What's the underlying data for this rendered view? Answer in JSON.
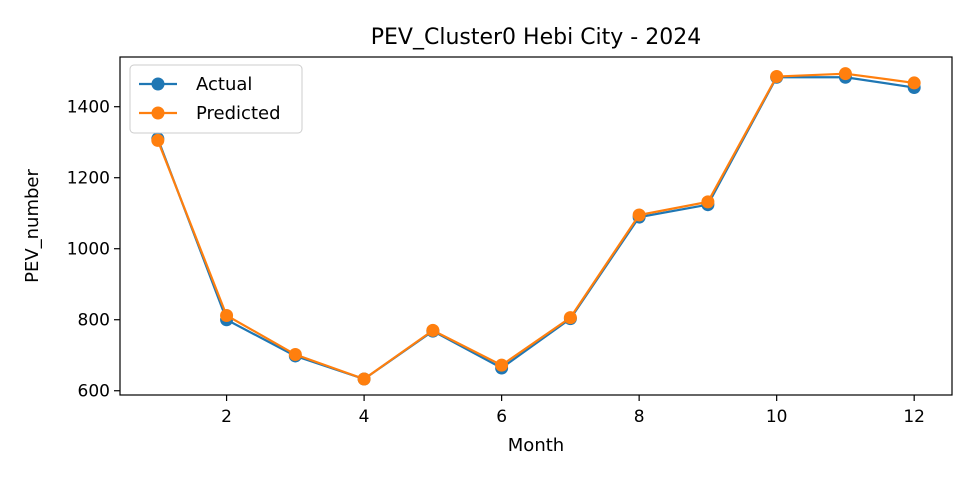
{
  "chart_data": {
    "type": "line",
    "title": "PEV_Cluster0 Hebi City - 2024",
    "xlabel": "Month",
    "ylabel": "PEV_number",
    "xlim": [
      0.45,
      12.55
    ],
    "ylim": [
      588,
      1540
    ],
    "xticks": [
      2,
      4,
      6,
      8,
      10,
      12
    ],
    "yticks": [
      600,
      800,
      1000,
      1200,
      1400
    ],
    "legend_position": "upper-left",
    "grid": false,
    "x": [
      1,
      2,
      3,
      4,
      5,
      6,
      7,
      8,
      9,
      10,
      11,
      12
    ],
    "series": [
      {
        "name": "Actual",
        "color": "#1f77b4",
        "values": [
          1310,
          800,
          698,
          633,
          768,
          664,
          803,
          1089,
          1124,
          1483,
          1483,
          1454
        ]
      },
      {
        "name": "Predicted",
        "color": "#ff7f0e",
        "values": [
          1305,
          812,
          702,
          633,
          770,
          672,
          806,
          1095,
          1132,
          1485,
          1493,
          1467
        ]
      }
    ]
  }
}
